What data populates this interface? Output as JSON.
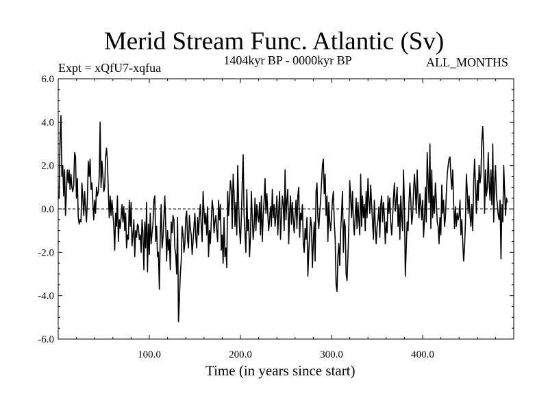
{
  "chart_data": {
    "type": "line",
    "title": "Merid Stream Func. Atlantic (Sv)",
    "subtitle": "1404kyr BP - 0000kyr BP",
    "left_label": "Expt = xQfU7-xqfua",
    "right_label": "ALL_MONTHS",
    "xlabel": "Time (in years since start)",
    "ylabel": "",
    "xlim": [
      0,
      500
    ],
    "ylim": [
      -6,
      6
    ],
    "x_ticks": [
      100,
      200,
      300,
      400
    ],
    "x_tick_labels": [
      "100.0",
      "200.0",
      "300.0",
      "400.0"
    ],
    "y_ticks": [
      6,
      4,
      2,
      0,
      -2,
      -4,
      -6
    ],
    "y_tick_labels": [
      "6.0",
      "4.0",
      "2.0",
      "0.0",
      "-2.0",
      "-4.0",
      "-6.0"
    ],
    "zero_line": true,
    "series": [
      {
        "name": "xQfU7-xqfua",
        "x_start": 1,
        "x_step": 1,
        "values": [
          0.5,
          3.2,
          4.3,
          1.5,
          2.0,
          0.6,
          1.8,
          -0.3,
          0.8,
          1.8,
          1.2,
          1.8,
          0.9,
          1.6,
          1.0,
          0.8,
          1.1,
          2.6,
          2.4,
          0.5,
          1.4,
          -0.4,
          -0.7,
          -0.5,
          -0.6,
          1.2,
          0.5,
          -0.3,
          0.8,
          0.0,
          -0.6,
          0.4,
          2.2,
          1.5,
          2.3,
          0.9,
          1.2,
          0.3,
          -0.5,
          0.4,
          -0.2,
          1.0,
          0.6,
          0.8,
          1.5,
          4.0,
          1.0,
          2.2,
          1.5,
          0.8,
          1.0,
          2.4,
          2.8,
          2.2,
          0.8,
          -0.4,
          0.6,
          -0.3,
          0.4,
          -0.2,
          -0.8,
          -1.9,
          -0.2,
          -0.8,
          0.6,
          -1.5,
          -0.5,
          -0.9,
          -0.4,
          0.2,
          -0.6,
          0.1,
          -1.0,
          -0.2,
          -1.8,
          -1.2,
          -1.4,
          0.4,
          -0.8,
          0.3,
          -1.7,
          -1.2,
          -0.5,
          -2.2,
          -1.0,
          -1.3,
          -0.7,
          -0.8,
          -1.4,
          -1.2,
          -2.0,
          -0.5,
          -1.1,
          -2.8,
          -0.6,
          -1.8,
          0.3,
          -2.9,
          -0.7,
          -2.1,
          -0.2,
          -1.6,
          -1.1,
          -0.7,
          0.4,
          0.6,
          -1.5,
          -0.8,
          -2.2,
          -2.0,
          -3.7,
          -1.2,
          0.2,
          -1.8,
          -1.3,
          -0.4,
          0.6,
          -0.8,
          -2.4,
          -1.0,
          -1.9,
          -1.4,
          -2.8,
          -0.6,
          -1.1,
          -0.3,
          -0.5,
          -1.8,
          -2.1,
          -3.0,
          -0.4,
          -5.2,
          -4.2,
          -3.0,
          -2.4,
          -0.8,
          -1.2,
          -2.0,
          -1.6,
          -0.4,
          -0.1,
          -1.4,
          -1.8,
          -0.3,
          -0.9,
          -1.2,
          -2.1,
          -1.5,
          -0.8,
          -0.2,
          -1.3,
          -1.8,
          -0.4,
          -1.2,
          -0.3,
          0.2,
          -0.8,
          -1.5,
          0.8,
          -0.1,
          -0.7,
          -0.2,
          -1.2,
          0.1,
          -2.2,
          -1.0,
          -1.6,
          -0.6,
          0.4,
          0.0,
          -1.1,
          -0.6,
          -0.3,
          -1.0,
          -1.5,
          0.4,
          -0.5,
          0.2,
          -1.9,
          -1.2,
          -2.5,
          -0.4,
          -2.2,
          -1.8,
          -2.7,
          0.8,
          -0.3,
          0.4,
          1.3,
          0.9,
          -0.9,
          1.6,
          0.7,
          -0.8,
          0.3,
          -1.2,
          2.0,
          0.3,
          -0.9,
          -1.6,
          -0.4,
          1.2,
          2.5,
          -0.3,
          -1.1,
          -2.0,
          0.9,
          -1.0,
          -0.5,
          -2.2,
          -1.3,
          0.8,
          -0.4,
          -1.4,
          -0.8,
          0.5,
          -1.0,
          0.2,
          -0.3,
          -0.6,
          0.3,
          -1.2,
          0.6,
          -1.5,
          -0.3,
          0.4,
          1.4,
          -0.2,
          0.7,
          -0.2,
          -1.0,
          -0.5,
          0.1,
          -0.8,
          0.9,
          -0.4,
          0.2,
          -0.8,
          -0.3,
          0.6,
          -1.2,
          -0.1,
          0.8,
          -1.4,
          -0.4,
          0.6,
          0.2,
          -1.0,
          1.8,
          -0.5,
          0.4,
          0.9,
          -1.6,
          -0.2,
          0.6,
          -0.7,
          0.3,
          -0.5,
          -1.1,
          -0.3,
          0.4,
          -0.9,
          0.6,
          1.0,
          -1.3,
          -0.2,
          -0.5,
          0.2,
          -1.6,
          -2.0,
          -0.9,
          -1.4,
          -0.4,
          -3.1,
          -2.0,
          -1.2,
          -0.4,
          -0.8,
          -2.7,
          -1.5,
          -0.6,
          -2.4,
          0.8,
          1.2,
          -0.4,
          -0.9,
          -0.2,
          0.4,
          1.2,
          2.0,
          2.3,
          0.7,
          1.6,
          -0.3,
          0.6,
          -1.5,
          0.3,
          -0.6,
          -1.0,
          -0.3,
          0.4,
          0.8,
          -0.6,
          -1.4,
          -3.5,
          -3.8,
          -2.2,
          -1.6,
          -2.6,
          -1.0,
          -0.2,
          0.8,
          -2.0,
          -0.5,
          -0.8,
          -3.0,
          -3.3,
          -2.2,
          -0.8,
          1.3,
          0.5,
          -0.4,
          0.8,
          -0.6,
          -1.2,
          -0.3,
          0.5,
          -0.9,
          0.3,
          -0.5,
          -1.2,
          1.6,
          -0.8,
          0.6,
          -0.4,
          0.2,
          -1.0,
          0.8,
          -0.4,
          1.4,
          0.4,
          -0.2,
          1.1,
          0.2,
          -0.6,
          -1.4,
          0.4,
          -0.8,
          -1.6,
          -0.8,
          -0.5,
          0.1,
          -1.3,
          0.2,
          0.6,
          -0.6,
          0.3,
          -0.3,
          -1.6,
          -0.6,
          -1.1,
          0.6,
          -0.2,
          0.5,
          -0.6,
          -1.2,
          -0.4,
          0.5,
          1.2,
          -0.1,
          0.4,
          1.0,
          -0.8,
          0.2,
          -1.4,
          0.6,
          -0.4,
          -1.0,
          1.8,
          0.2,
          -3.1,
          -1.8,
          -0.6,
          -1.0,
          0.3,
          1.2,
          0.4,
          -0.7,
          -0.3,
          0.8,
          1.6,
          0.9,
          -0.2,
          1.8,
          0.4,
          -0.4,
          0.7,
          0.2,
          -0.5,
          0.4,
          -1.3,
          -0.5,
          1.0,
          -0.6,
          2.6,
          1.4,
          0.3,
          3.0,
          -0.9,
          1.8,
          -0.4,
          0.6,
          -0.2,
          1.2,
          0.4,
          -0.6,
          -0.8,
          -1.6,
          -0.4,
          -1.2,
          1.1,
          -0.2,
          0.4,
          -0.8,
          -0.4,
          0.7,
          1.6,
          2.0,
          2.3,
          2.4,
          1.5,
          0.9,
          1.8,
          0.3,
          -0.9,
          0.1,
          -0.8,
          -0.2,
          -0.5,
          -0.3,
          0.4,
          -1.2,
          -0.5,
          -1.5,
          -2.4,
          -1.8,
          -0.6,
          1.6,
          0.8,
          -0.2,
          0.6,
          -0.3,
          -0.8,
          0.2,
          -1.0,
          1.2,
          2.3,
          1.0,
          -0.2,
          1.3,
          0.4,
          2.0,
          1.2,
          1.6,
          3.2,
          3.8,
          2.5,
          -0.2,
          1.8,
          0.6,
          1.0,
          2.6,
          1.2,
          0.4,
          1.8,
          0.2,
          3.0,
          -0.6,
          1.2,
          2.0,
          0.6,
          0.2,
          -0.3,
          -0.5,
          0.4,
          -2.3,
          0.2,
          -0.6,
          2.0,
          0.8,
          -0.3,
          0.5,
          0.3
        ]
      }
    ]
  }
}
